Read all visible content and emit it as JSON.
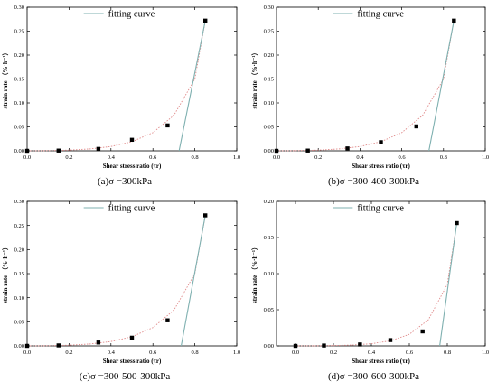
{
  "colors": {
    "background": "#ffffff",
    "axis": "#000000",
    "points": "#000000",
    "exp_curve": "#e08a8a",
    "fitting_line": "#7fb0b0"
  },
  "chart_data": [
    {
      "type": "scatter",
      "caption": "(a)σ =300kPa",
      "xlabel": "Shear stress ratio (τr)",
      "ylabel": "strain rate （%·h⁻¹）",
      "xlim": [
        0,
        1.0
      ],
      "ylim": [
        0,
        0.3
      ],
      "xticks": [
        "0.0",
        "0.2",
        "0.4",
        "0.6",
        "0.8",
        "1.0"
      ],
      "yticks": [
        "0.00",
        "0.05",
        "0.10",
        "0.15",
        "0.20",
        "0.25",
        "0.30"
      ],
      "legend": {
        "placement": "top-center",
        "entries": [
          "fitting curve"
        ]
      },
      "points": {
        "x": [
          0.0,
          0.15,
          0.34,
          0.5,
          0.67,
          0.85
        ],
        "y": [
          0.0,
          0.0005,
          0.004,
          0.023,
          0.053,
          0.272
        ]
      },
      "exp_curve": {
        "x": [
          0.0,
          0.1,
          0.2,
          0.3,
          0.4,
          0.5,
          0.6,
          0.7,
          0.8,
          0.85
        ],
        "y": [
          0.0,
          0.0003,
          0.0015,
          0.004,
          0.009,
          0.019,
          0.038,
          0.074,
          0.15,
          0.272
        ]
      },
      "fitting_line": {
        "x": [
          0.725,
          0.85
        ],
        "y": [
          0.0,
          0.272
        ]
      }
    },
    {
      "type": "scatter",
      "caption": "(b)σ =300-400-300kPa",
      "xlabel": "Shear stress ratio (τr)",
      "ylabel": "strain rate （%·h⁻¹）",
      "xlim": [
        0,
        1.0
      ],
      "ylim": [
        0,
        0.3
      ],
      "xticks": [
        "0.0",
        "0.2",
        "0.4",
        "0.6",
        "0.8",
        "1.0"
      ],
      "yticks": [
        "0.00",
        "0.05",
        "0.10",
        "0.15",
        "0.20",
        "0.25",
        "0.30"
      ],
      "legend": {
        "placement": "top-center",
        "entries": [
          "fitting curve"
        ]
      },
      "points": {
        "x": [
          0.0,
          0.15,
          0.34,
          0.5,
          0.67,
          0.85
        ],
        "y": [
          0.0,
          0.0005,
          0.005,
          0.018,
          0.051,
          0.272
        ]
      },
      "exp_curve": {
        "x": [
          0.0,
          0.1,
          0.2,
          0.3,
          0.4,
          0.5,
          0.6,
          0.7,
          0.8,
          0.85
        ],
        "y": [
          0.0,
          0.0003,
          0.0015,
          0.004,
          0.009,
          0.019,
          0.038,
          0.074,
          0.15,
          0.272
        ]
      },
      "fitting_line": {
        "x": [
          0.73,
          0.85
        ],
        "y": [
          0.0,
          0.272
        ]
      }
    },
    {
      "type": "scatter",
      "caption": "(c)σ =300-500-300kPa",
      "xlabel": "Shear stress ratio (τr)",
      "ylabel": "strain rate （%·h⁻¹）",
      "xlim": [
        0,
        1.0
      ],
      "ylim": [
        0,
        0.3
      ],
      "xticks": [
        "0.0",
        "0.2",
        "0.4",
        "0.6",
        "0.8",
        "1.0"
      ],
      "yticks": [
        "0.00",
        "0.05",
        "0.10",
        "0.15",
        "0.20",
        "0.25",
        "0.30"
      ],
      "legend": {
        "placement": "top-center",
        "entries": [
          "fitting curve"
        ]
      },
      "points": {
        "x": [
          0.0,
          0.15,
          0.34,
          0.5,
          0.67,
          0.85
        ],
        "y": [
          0.0,
          0.001,
          0.007,
          0.017,
          0.053,
          0.271
        ]
      },
      "exp_curve": {
        "x": [
          0.0,
          0.1,
          0.2,
          0.3,
          0.4,
          0.5,
          0.6,
          0.7,
          0.8,
          0.85
        ],
        "y": [
          0.0,
          0.0003,
          0.0015,
          0.004,
          0.009,
          0.019,
          0.038,
          0.074,
          0.15,
          0.271
        ]
      },
      "fitting_line": {
        "x": [
          0.735,
          0.85
        ],
        "y": [
          0.0,
          0.271
        ]
      }
    },
    {
      "type": "scatter",
      "caption": "(d)σ =300-600-300kPa",
      "xlabel": "Shear stress ratio (τr)",
      "ylabel": "strain rate （%·h⁻¹）",
      "xlim": [
        -0.1,
        1.0
      ],
      "ylim": [
        0,
        0.2
      ],
      "xticks": [
        "0.0",
        "0.2",
        "0.4",
        "0.6",
        "0.8",
        "1.0"
      ],
      "yticks": [
        "0.00",
        "0.05",
        "0.10",
        "0.15",
        "0.20"
      ],
      "legend": {
        "placement": "top-center",
        "entries": [
          "fitting curve"
        ]
      },
      "points": {
        "x": [
          0.0,
          0.15,
          0.34,
          0.5,
          0.67,
          0.85
        ],
        "y": [
          0.0,
          0.0005,
          0.002,
          0.008,
          0.02,
          0.17
        ]
      },
      "exp_curve": {
        "x": [
          0.0,
          0.1,
          0.2,
          0.3,
          0.4,
          0.5,
          0.6,
          0.7,
          0.8,
          0.85
        ],
        "y": [
          0.0,
          0.0001,
          0.0004,
          0.0012,
          0.003,
          0.007,
          0.016,
          0.036,
          0.085,
          0.17
        ]
      },
      "fitting_line": {
        "x": [
          0.76,
          0.85
        ],
        "y": [
          0.0,
          0.17
        ]
      }
    }
  ]
}
